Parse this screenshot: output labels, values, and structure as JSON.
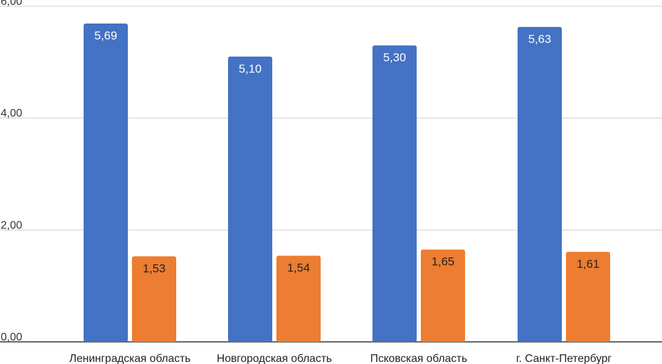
{
  "chart_data": {
    "type": "bar",
    "categories": [
      "Ленинградская область",
      "Новгородская область",
      "Псковская область",
      "г. Санкт-Петербург"
    ],
    "series": [
      {
        "values": [
          5.69,
          5.1,
          5.3,
          5.63
        ],
        "labels": [
          "5,69",
          "5,10",
          "5,30",
          "5,63"
        ],
        "color": "#4472c4",
        "label_color": "#ffffff"
      },
      {
        "values": [
          1.53,
          1.54,
          1.65,
          1.61
        ],
        "labels": [
          "1,53",
          "1,54",
          "1,65",
          "1,61"
        ],
        "color": "#ed7d31",
        "label_color": "#222222"
      }
    ],
    "y_ticks": [
      {
        "value": 0,
        "label": "0,00"
      },
      {
        "value": 2,
        "label": "2,00"
      },
      {
        "value": 4,
        "label": "4,00"
      },
      {
        "value": 6,
        "label": "6,00"
      }
    ],
    "ylim": [
      0,
      6
    ],
    "grid": true,
    "legend": "none",
    "title": "",
    "xlabel": "",
    "ylabel": ""
  }
}
